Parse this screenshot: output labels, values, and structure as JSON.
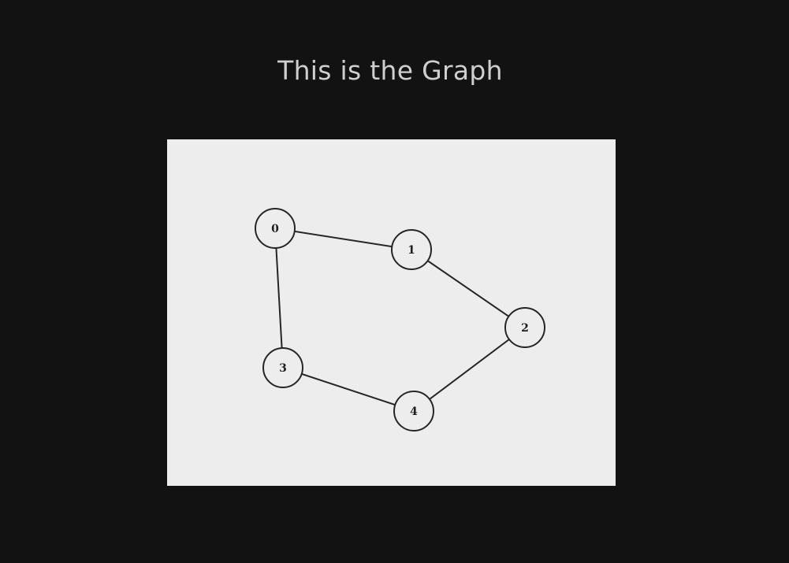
{
  "page": {
    "title": "This is the Graph",
    "background_color": "#121212",
    "panel_color": "#ededed",
    "ink_color": "#262626"
  },
  "graph": {
    "nodes": [
      {
        "id": "0",
        "label": "0"
      },
      {
        "id": "1",
        "label": "1"
      },
      {
        "id": "2",
        "label": "2"
      },
      {
        "id": "3",
        "label": "3"
      },
      {
        "id": "4",
        "label": "4"
      }
    ],
    "edges": [
      {
        "from": "0",
        "to": "1"
      },
      {
        "from": "1",
        "to": "2"
      },
      {
        "from": "2",
        "to": "4"
      },
      {
        "from": "4",
        "to": "3"
      },
      {
        "from": "3",
        "to": "0"
      }
    ]
  }
}
